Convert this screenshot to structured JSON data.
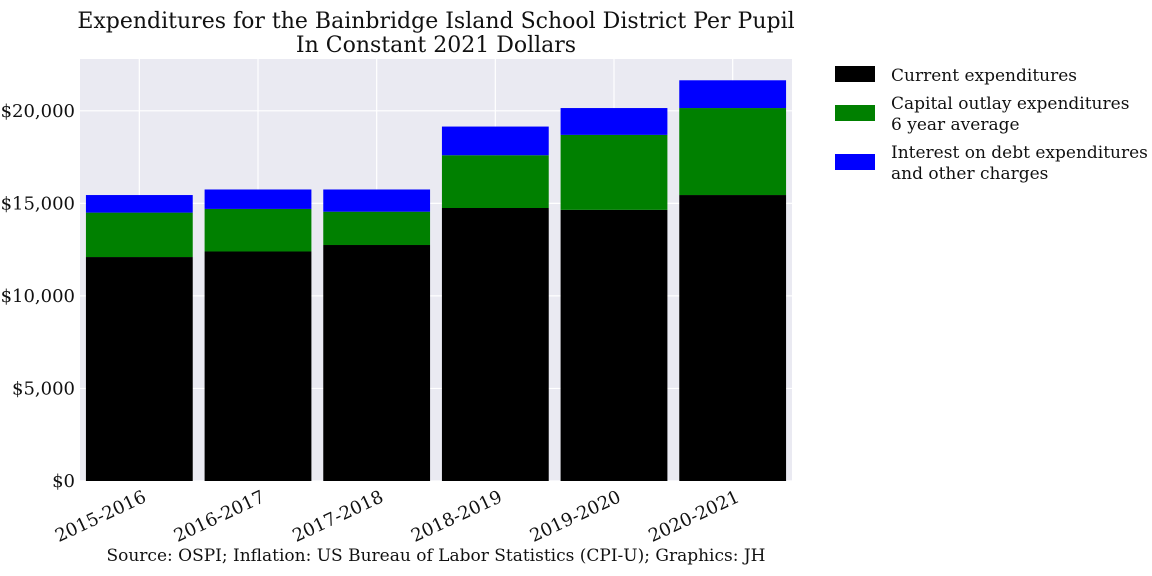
{
  "chart_data": {
    "type": "bar",
    "stacked": true,
    "title_lines": [
      "Expenditures for the Bainbridge Island School District Per Pupil",
      "In Constant 2021 Dollars"
    ],
    "categories": [
      "2015-2016",
      "2016-2017",
      "2017-2018",
      "2018-2019",
      "2019-2020",
      "2020-2021"
    ],
    "series": [
      {
        "name_lines": [
          "Current expenditures"
        ],
        "color": "#000000",
        "values": [
          12100,
          12400,
          12750,
          14750,
          14650,
          15450
        ]
      },
      {
        "name_lines": [
          "Capital outlay expenditures",
          "6 year average"
        ],
        "color": "#008000",
        "values": [
          2400,
          2300,
          1800,
          2850,
          4050,
          4700
        ]
      },
      {
        "name_lines": [
          "Interest on debt expenditures",
          "and other charges"
        ],
        "color": "#0000ff",
        "values": [
          950,
          1050,
          1200,
          1550,
          1450,
          1500
        ]
      }
    ],
    "yticks": [
      0,
      5000,
      10000,
      15000,
      20000
    ],
    "ytick_labels": [
      "$0",
      "$5,000",
      "$10,000",
      "$15,000",
      "$20,000"
    ],
    "ylim": [
      0,
      22800
    ],
    "grid": true,
    "legend_position": "outside-right",
    "background": "#eaeaf2",
    "source": "Source: OSPI; Inflation: US Bureau of Labor Statistics (CPI-U); Graphics: JH"
  }
}
